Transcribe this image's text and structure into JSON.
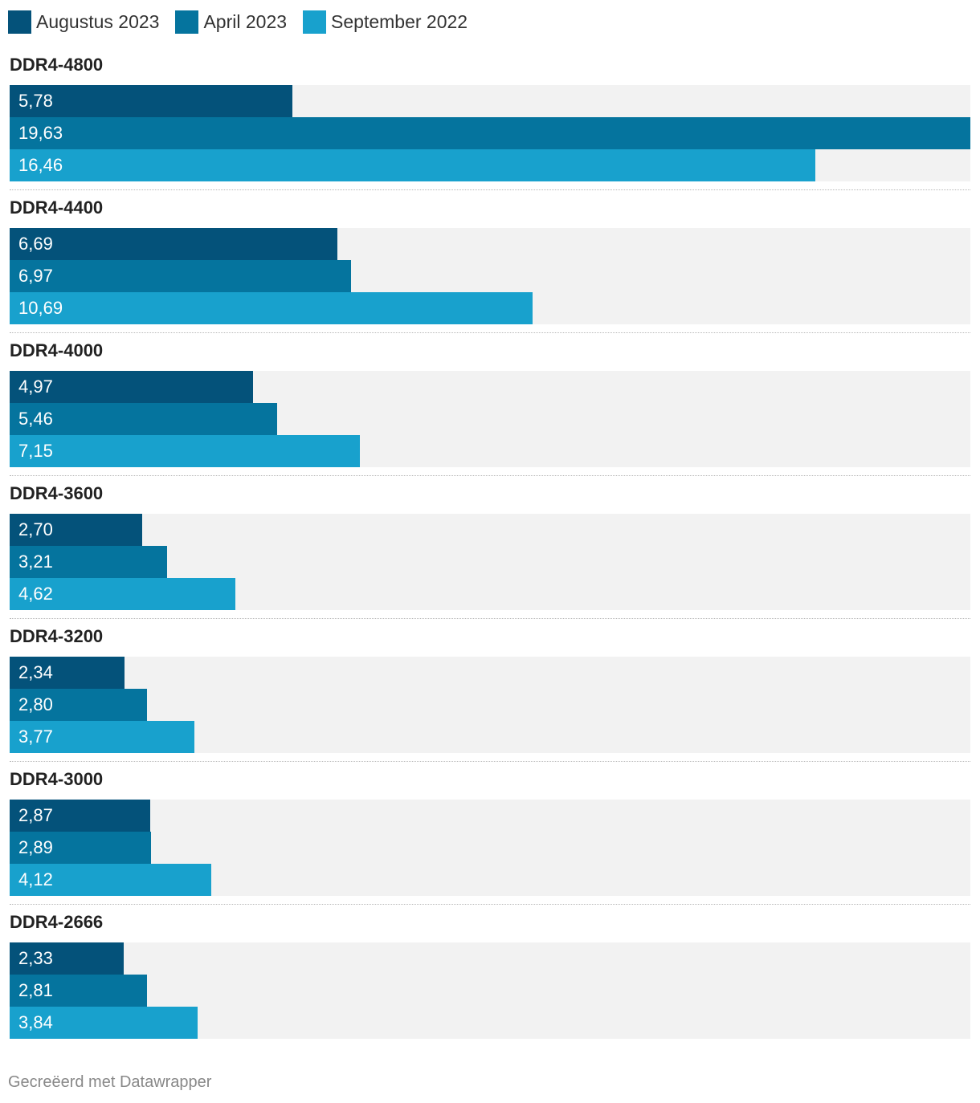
{
  "legend": {
    "items": [
      {
        "label": "Augustus 2023",
        "color": "#04527a"
      },
      {
        "label": "April 2023",
        "color": "#05749e"
      },
      {
        "label": "September 2022",
        "color": "#18a1cd"
      }
    ]
  },
  "chart_data": {
    "type": "bar",
    "orientation": "horizontal",
    "categories": [
      "DDR4-4800",
      "DDR4-4400",
      "DDR4-4000",
      "DDR4-3600",
      "DDR4-3200",
      "DDR4-3000",
      "DDR4-2666"
    ],
    "series": [
      {
        "name": "Augustus 2023",
        "color": "#04527a",
        "values": [
          5.78,
          6.69,
          4.97,
          2.7,
          2.34,
          2.87,
          2.33
        ],
        "labels": [
          "5,78",
          "6,69",
          "4,97",
          "2,70",
          "2,34",
          "2,87",
          "2,33"
        ]
      },
      {
        "name": "April 2023",
        "color": "#05749e",
        "values": [
          19.63,
          6.97,
          5.46,
          3.21,
          2.8,
          2.89,
          2.81
        ],
        "labels": [
          "19,63",
          "6,97",
          "5,46",
          "3,21",
          "2,80",
          "2,89",
          "2,81"
        ]
      },
      {
        "name": "September 2022",
        "color": "#18a1cd",
        "values": [
          16.46,
          10.69,
          7.15,
          4.62,
          3.77,
          4.12,
          3.84
        ],
        "labels": [
          "16,46",
          "10,69",
          "7,15",
          "4,62",
          "3,77",
          "4,12",
          "3,84"
        ]
      }
    ],
    "xlim": [
      0,
      19.63
    ],
    "title": "",
    "xlabel": "",
    "ylabel": "",
    "grid": false,
    "legend_position": "top-left"
  },
  "footer": {
    "credit": "Gecreëerd met Datawrapper"
  }
}
